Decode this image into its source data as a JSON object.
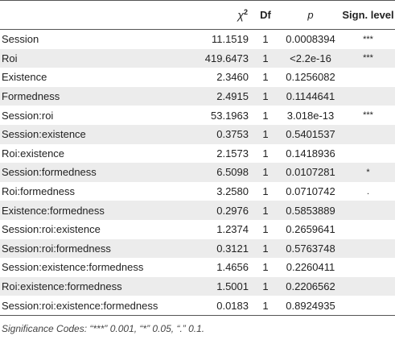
{
  "table": {
    "headers": {
      "term": "",
      "chi_symbol": "χ",
      "chi_sup": "2",
      "df": "Df",
      "p": "p",
      "sig": "Sign. level"
    },
    "rows": [
      {
        "term": "Session",
        "chi": "11.1519",
        "df": "1",
        "p": "0.0008394",
        "sig": "***"
      },
      {
        "term": "Roi",
        "chi": "419.6473",
        "df": "1",
        "p": "<2.2e-16",
        "sig": "***"
      },
      {
        "term": "Existence",
        "chi": "2.3460",
        "df": "1",
        "p": "0.1256082",
        "sig": ""
      },
      {
        "term": "Formedness",
        "chi": "2.4915",
        "df": "1",
        "p": "0.1144641",
        "sig": ""
      },
      {
        "term": "Session:roi",
        "chi": "53.1963",
        "df": "1",
        "p": "3.018e-13",
        "sig": "***"
      },
      {
        "term": "Session:existence",
        "chi": "0.3753",
        "df": "1",
        "p": "0.5401537",
        "sig": ""
      },
      {
        "term": "Roi:existence",
        "chi": "2.1573",
        "df": "1",
        "p": "0.1418936",
        "sig": ""
      },
      {
        "term": "Session:formedness",
        "chi": "6.5098",
        "df": "1",
        "p": "0.0107281",
        "sig": "*"
      },
      {
        "term": "Roi:formedness",
        "chi": "3.2580",
        "df": "1",
        "p": "0.0710742",
        "sig": "."
      },
      {
        "term": "Existence:formedness",
        "chi": "0.2976",
        "df": "1",
        "p": "0.5853889",
        "sig": ""
      },
      {
        "term": "Session:roi:existence",
        "chi": "1.2374",
        "df": "1",
        "p": "0.2659641",
        "sig": ""
      },
      {
        "term": "Session:roi:formedness",
        "chi": "0.3121",
        "df": "1",
        "p": "0.5763748",
        "sig": ""
      },
      {
        "term": "Session:existence:formedness",
        "chi": "1.4656",
        "df": "1",
        "p": "0.2260411",
        "sig": ""
      },
      {
        "term": "Roi:existence:formedness",
        "chi": "1.5001",
        "df": "1",
        "p": "0.2206562",
        "sig": ""
      },
      {
        "term": "Session:roi:existence:formedness",
        "chi": "0.0183",
        "df": "1",
        "p": "0.8924935",
        "sig": ""
      }
    ]
  },
  "footnote": "Significance Codes: “***” 0.001, “*” 0.05, “.” 0.1."
}
